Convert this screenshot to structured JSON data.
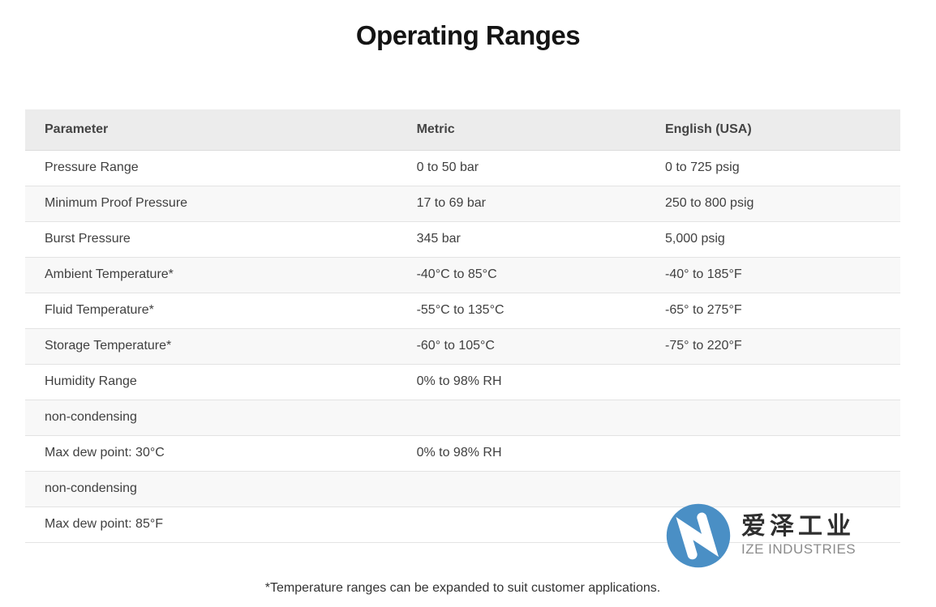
{
  "page": {
    "title": "Operating Ranges",
    "footnote": "*Temperature ranges can be expanded to suit customer applications."
  },
  "table": {
    "columns": [
      "Parameter",
      "Metric",
      "English (USA)"
    ],
    "rows": [
      [
        "Pressure Range",
        "0 to 50 bar",
        "0 to 725 psig"
      ],
      [
        "Minimum Proof Pressure",
        "17 to 69 bar",
        "250 to 800 psig"
      ],
      [
        "Burst Pressure",
        "345 bar",
        "5,000 psig"
      ],
      [
        "Ambient Temperature*",
        "-40°C to 85°C",
        "-40° to 185°F"
      ],
      [
        "Fluid Temperature*",
        "-55°C to 135°C",
        "-65° to 275°F"
      ],
      [
        "Storage Temperature*",
        "-60° to 105°C",
        "-75° to 220°F"
      ],
      [
        "Humidity Range",
        "0% to 98% RH",
        ""
      ],
      [
        "non-condensing",
        "",
        ""
      ],
      [
        "Max dew point: 30°C",
        "0% to 98% RH",
        ""
      ],
      [
        "non-condensing",
        "",
        ""
      ],
      [
        "Max dew point: 85°F",
        "",
        ""
      ]
    ]
  },
  "watermark": {
    "icon": "ize-logo-circle-n-icon",
    "cn_name": "爱泽工业",
    "en_name": "IZE INDUSTRIES",
    "brand_blue": "#4a8fc5"
  },
  "colors": {
    "header_bg": "#ececec",
    "row_alt_bg": "#f8f8f8",
    "row_border": "#e3e3e3",
    "body_text": "#404040",
    "header_text": "#444444"
  }
}
